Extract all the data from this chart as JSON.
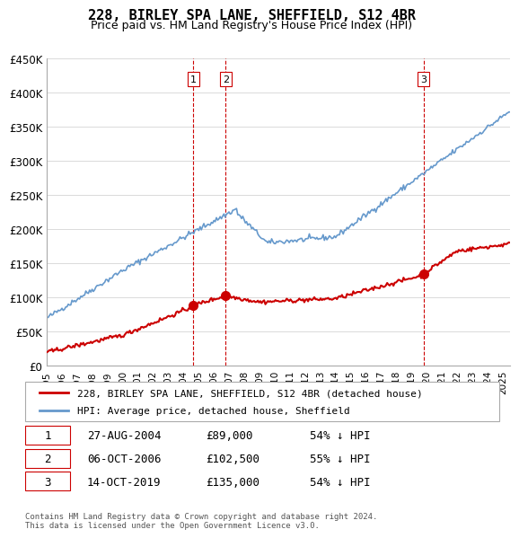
{
  "title": "228, BIRLEY SPA LANE, SHEFFIELD, S12 4BR",
  "subtitle": "Price paid vs. HM Land Registry's House Price Index (HPI)",
  "ylabel_vals": [
    "£0",
    "£50K",
    "£100K",
    "£150K",
    "£200K",
    "£250K",
    "£300K",
    "£350K",
    "£400K",
    "£450K"
  ],
  "ylim": [
    0,
    450000
  ],
  "xlim_start": 1995.0,
  "xlim_end": 2025.5,
  "sale_dates": [
    2004.65,
    2006.76,
    2019.79
  ],
  "sale_prices": [
    89000,
    102500,
    135000
  ],
  "sale_labels": [
    "1",
    "2",
    "3"
  ],
  "red_line_color": "#cc0000",
  "blue_line_color": "#6699cc",
  "vline_color": "#cc0000",
  "legend_red_label": "228, BIRLEY SPA LANE, SHEFFIELD, S12 4BR (detached house)",
  "legend_blue_label": "HPI: Average price, detached house, Sheffield",
  "table_data": [
    [
      "1",
      "27-AUG-2004",
      "£89,000",
      "54% ↓ HPI"
    ],
    [
      "2",
      "06-OCT-2006",
      "£102,500",
      "55% ↓ HPI"
    ],
    [
      "3",
      "14-OCT-2019",
      "£135,000",
      "54% ↓ HPI"
    ]
  ],
  "footnote": "Contains HM Land Registry data © Crown copyright and database right 2024.\nThis data is licensed under the Open Government Licence v3.0.",
  "xtick_years": [
    1995,
    1996,
    1997,
    1998,
    1999,
    2000,
    2001,
    2002,
    2003,
    2004,
    2005,
    2006,
    2007,
    2008,
    2009,
    2010,
    2011,
    2012,
    2013,
    2014,
    2015,
    2016,
    2017,
    2018,
    2019,
    2020,
    2021,
    2022,
    2023,
    2024,
    2025
  ]
}
